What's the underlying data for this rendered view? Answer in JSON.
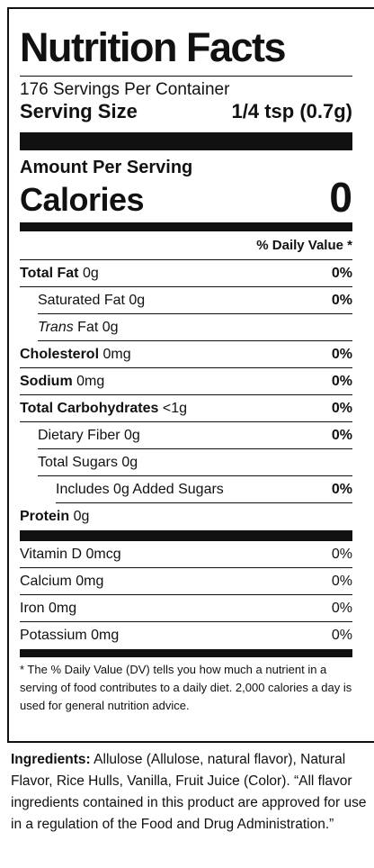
{
  "title": "Nutrition Facts",
  "servings_per_container": "176 Servings Per Container",
  "serving_size": {
    "label": "Serving Size",
    "value": "1/4 tsp (0.7g)"
  },
  "amount_per_serving": "Amount Per Serving",
  "calories": {
    "label": "Calories",
    "value": "0"
  },
  "daily_value_header": "% Daily Value *",
  "nutrients": [
    {
      "name": "Total Fat",
      "amount": "0g",
      "dv": "0%"
    },
    {
      "name": "Saturated Fat",
      "amount": "0g",
      "dv": "0%"
    },
    {
      "name": "Trans",
      "name_suffix": "Fat",
      "amount": "0g",
      "dv": ""
    },
    {
      "name": "Cholesterol",
      "amount": "0mg",
      "dv": "0%"
    },
    {
      "name": "Sodium",
      "amount": "0mg",
      "dv": "0%"
    },
    {
      "name": "Total Carbohydrates",
      "amount": "<1g",
      "dv": "0%"
    },
    {
      "name": "Dietary Fiber",
      "amount": "0g",
      "dv": "0%"
    },
    {
      "name": "Total Sugars",
      "amount": "0g",
      "dv": ""
    },
    {
      "name": "Includes 0g Added Sugars",
      "amount": "",
      "dv": "0%"
    },
    {
      "name": "Protein",
      "amount": "0g",
      "dv": ""
    }
  ],
  "vitamins": [
    {
      "name": "Vitamin D",
      "amount": "0mcg",
      "dv": "0%"
    },
    {
      "name": "Calcium",
      "amount": "0mg",
      "dv": "0%"
    },
    {
      "name": "Iron",
      "amount": "0mg",
      "dv": "0%"
    },
    {
      "name": "Potassium",
      "amount": "0mg",
      "dv": "0%"
    }
  ],
  "footnote": "* The % Daily Value (DV) tells you how much a nutrient in a serving of food contributes to a daily diet. 2,000 calories a day is used for general nutrition advice.",
  "ingredients": {
    "label": "Ingredients:",
    "text": "Allulose (Allulose, natural flavor), Natural Flavor, Rice Hulls, Vanilla, Fruit Juice (Color). “All flavor ingredients contained in this product are approved for use in a regulation of the Food and Drug Administration.”"
  }
}
